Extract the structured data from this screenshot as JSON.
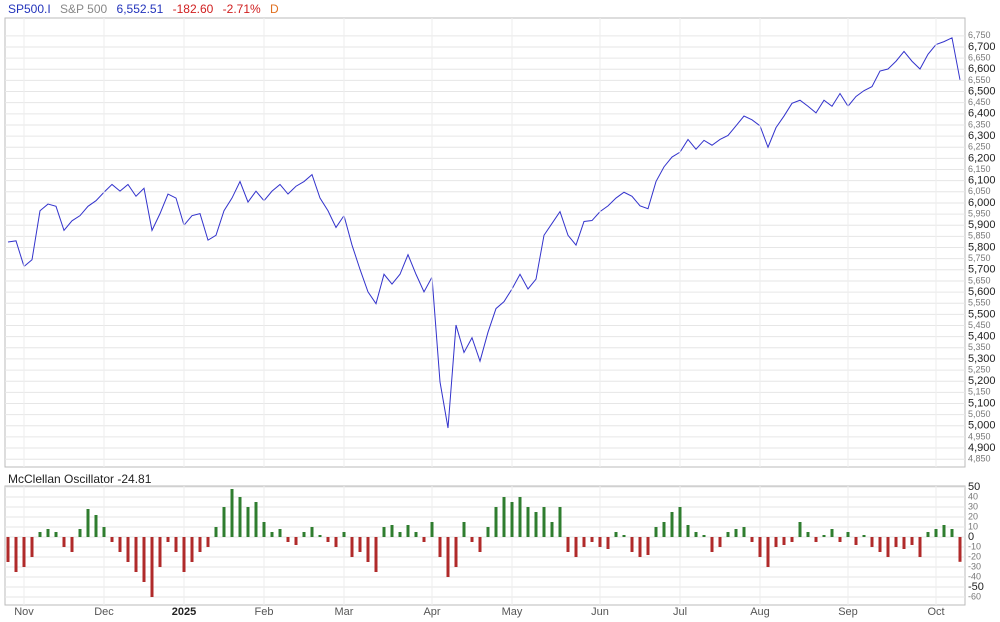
{
  "header": {
    "symbol": "SP500.I",
    "name": "S&P 500",
    "last": "6,552.51",
    "change": "-182.60",
    "change_pct": "-2.71%",
    "interval": "D"
  },
  "chart_data": [
    {
      "type": "line",
      "color": "#3333cc",
      "grid": true,
      "ylim": [
        4815,
        6830
      ],
      "yticks": [
        {
          "value": 4850,
          "label": "4,850"
        },
        {
          "value": 4900,
          "label": "4,900"
        },
        {
          "value": 4950,
          "label": "4,950"
        },
        {
          "value": 5000,
          "label": "5,000"
        },
        {
          "value": 5050,
          "label": "5,050"
        },
        {
          "value": 5100,
          "label": "5,100"
        },
        {
          "value": 5150,
          "label": "5,150"
        },
        {
          "value": 5200,
          "label": "5,200"
        },
        {
          "value": 5250,
          "label": "5,250"
        },
        {
          "value": 5300,
          "label": "5,300"
        },
        {
          "value": 5350,
          "label": "5,350"
        },
        {
          "value": 5400,
          "label": "5,400"
        },
        {
          "value": 5450,
          "label": "5,450"
        },
        {
          "value": 5500,
          "label": "5,500"
        },
        {
          "value": 5550,
          "label": "5,550"
        },
        {
          "value": 5600,
          "label": "5,600"
        },
        {
          "value": 5650,
          "label": "5,650"
        },
        {
          "value": 5700,
          "label": "5,700"
        },
        {
          "value": 5750,
          "label": "5,750"
        },
        {
          "value": 5800,
          "label": "5,800"
        },
        {
          "value": 5850,
          "label": "5,850"
        },
        {
          "value": 5900,
          "label": "5,900"
        },
        {
          "value": 5950,
          "label": "5,950"
        },
        {
          "value": 6000,
          "label": "6,000"
        },
        {
          "value": 6050,
          "label": "6,050"
        },
        {
          "value": 6100,
          "label": "6,100"
        },
        {
          "value": 6150,
          "label": "6,150"
        },
        {
          "value": 6200,
          "label": "6,200"
        },
        {
          "value": 6250,
          "label": "6,250"
        },
        {
          "value": 6300,
          "label": "6,300"
        },
        {
          "value": 6350,
          "label": "6,350"
        },
        {
          "value": 6400,
          "label": "6,400"
        },
        {
          "value": 6450,
          "label": "6,450"
        },
        {
          "value": 6500,
          "label": "6,500"
        },
        {
          "value": 6550,
          "label": "6,550"
        },
        {
          "value": 6600,
          "label": "6,600"
        },
        {
          "value": 6650,
          "label": "6,650"
        },
        {
          "value": 6700,
          "label": "6,700"
        },
        {
          "value": 6750,
          "label": "6,750"
        }
      ],
      "values": [
        5825,
        5830,
        5715,
        5745,
        5965,
        5995,
        5985,
        5877,
        5920,
        5943,
        5985,
        6010,
        6048,
        6083,
        6053,
        6083,
        6030,
        6066,
        5877,
        5952,
        6040,
        6022,
        5900,
        5943,
        5952,
        5833,
        5855,
        5965,
        6022,
        6096,
        6004,
        6053,
        6010,
        6053,
        6083,
        6040,
        6075,
        6096,
        6127,
        6022,
        5965,
        5890,
        5943,
        5811,
        5702,
        5601,
        5548,
        5680,
        5636,
        5680,
        5768,
        5680,
        5601,
        5667,
        5197,
        4990,
        5452,
        5329,
        5395,
        5290,
        5420,
        5526,
        5557,
        5614,
        5680,
        5614,
        5658,
        5855,
        5908,
        5961,
        5855,
        5811,
        5917,
        5921,
        5961,
        5987,
        6022,
        6048,
        6030,
        5987,
        5974,
        6096,
        6162,
        6206,
        6228,
        6285,
        6241,
        6281,
        6259,
        6285,
        6303,
        6346,
        6390,
        6373,
        6346,
        6250,
        6338,
        6390,
        6447,
        6461,
        6434,
        6404,
        6461,
        6434,
        6491,
        6434,
        6478,
        6504,
        6522,
        6592,
        6601,
        6636,
        6680,
        6636,
        6601,
        6667,
        6711,
        6724,
        6741,
        6552.51
      ]
    },
    {
      "type": "bar",
      "title": "McClellan Oscillator",
      "last": "-24.81",
      "grid": true,
      "colors": {
        "positive": "#2f7d2f",
        "negative": "#b02a2a"
      },
      "ylim": [
        -68,
        51
      ],
      "yticks": [
        -60,
        -50,
        -40,
        -30,
        -20,
        -10,
        0,
        10,
        20,
        30,
        40,
        50
      ],
      "categories": [
        null,
        null,
        "Nov",
        null,
        null,
        null,
        null,
        null,
        null,
        null,
        null,
        null,
        "Dec",
        null,
        null,
        null,
        null,
        null,
        null,
        null,
        null,
        null,
        "2025",
        null,
        null,
        null,
        null,
        null,
        null,
        null,
        null,
        null,
        "Feb",
        null,
        null,
        null,
        null,
        null,
        null,
        null,
        null,
        null,
        "Mar",
        null,
        null,
        null,
        null,
        null,
        null,
        null,
        null,
        null,
        null,
        "Apr",
        null,
        null,
        null,
        null,
        null,
        null,
        null,
        null,
        null,
        "May",
        null,
        null,
        null,
        null,
        null,
        null,
        null,
        null,
        null,
        null,
        "Jun",
        null,
        null,
        null,
        null,
        null,
        null,
        null,
        null,
        null,
        "Jul",
        null,
        null,
        null,
        null,
        null,
        null,
        null,
        null,
        null,
        "Aug",
        null,
        null,
        null,
        null,
        null,
        null,
        null,
        null,
        null,
        null,
        "Sep",
        null,
        null,
        null,
        null,
        null,
        null,
        null,
        null,
        null,
        null,
        "Oct",
        null,
        null,
        null
      ],
      "values": [
        -25,
        -35,
        -30,
        -20,
        5,
        8,
        5,
        -10,
        -15,
        8,
        28,
        22,
        10,
        -5,
        -15,
        -25,
        -35,
        -45,
        -60,
        -30,
        -5,
        -15,
        -35,
        -25,
        -15,
        -10,
        10,
        30,
        48,
        40,
        30,
        35,
        15,
        5,
        8,
        -5,
        -8,
        5,
        10,
        2,
        -5,
        -10,
        5,
        -20,
        -15,
        -25,
        -35,
        10,
        12,
        5,
        12,
        5,
        -5,
        15,
        -20,
        -40,
        -30,
        15,
        -5,
        -15,
        10,
        30,
        40,
        35,
        40,
        30,
        25,
        30,
        15,
        30,
        -15,
        -20,
        -10,
        -5,
        -10,
        -12,
        5,
        2,
        -15,
        -20,
        -18,
        10,
        15,
        25,
        30,
        12,
        5,
        2,
        -15,
        -10,
        5,
        8,
        10,
        -5,
        -20,
        -30,
        -10,
        -8,
        -5,
        15,
        5,
        -5,
        2,
        8,
        -5,
        5,
        -8,
        2,
        -10,
        -15,
        -20,
        -10,
        -12,
        -8,
        -20,
        5,
        8,
        12,
        8,
        -24.81
      ]
    }
  ]
}
